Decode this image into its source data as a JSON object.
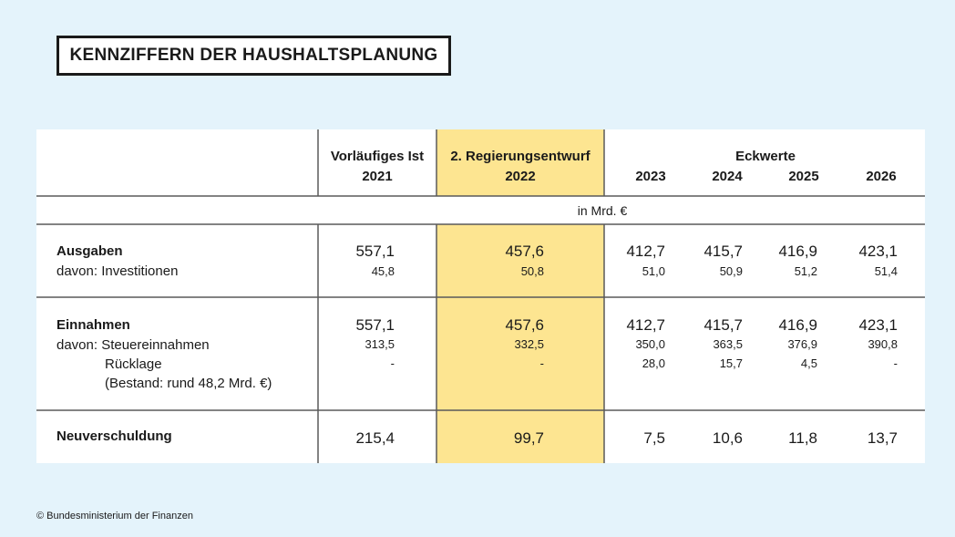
{
  "title": "KENNZIFFERN DER HAUSHALTSPLANUNG",
  "footer": "© Bundesministerium der Finanzen",
  "colors": {
    "background": "#e4f3fb",
    "highlight": "#fde591",
    "table": "#ffffff",
    "rule": "#5a5a5a"
  },
  "chart_data": {
    "type": "table",
    "title": "KENNZIFFERN DER HAUSHALTSPLANUNG",
    "unit": "in Mrd. €",
    "group_header": "Eckwerte",
    "columns": [
      {
        "line1": "Vorläufiges Ist",
        "line2": "2021",
        "highlight": false
      },
      {
        "line1": "2. Regierungsentwurf",
        "line2": "2022",
        "highlight": true
      },
      {
        "line1": "",
        "line2": "2023",
        "highlight": false
      },
      {
        "line1": "",
        "line2": "2024",
        "highlight": false
      },
      {
        "line1": "",
        "line2": "2025",
        "highlight": false
      },
      {
        "line1": "",
        "line2": "2026",
        "highlight": false
      }
    ],
    "rows": [
      {
        "label": "Ausgaben",
        "bold": true,
        "values": [
          "557,1",
          "457,6",
          "412,7",
          "415,7",
          "416,9",
          "423,1"
        ]
      },
      {
        "label": "davon: Investitionen",
        "bold": false,
        "values": [
          "45,8",
          "50,8",
          "51,0",
          "50,9",
          "51,2",
          "51,4"
        ]
      },
      {
        "label": "Einnahmen",
        "bold": true,
        "values": [
          "557,1",
          "457,6",
          "412,7",
          "415,7",
          "416,9",
          "423,1"
        ]
      },
      {
        "label": "davon: Steuereinnahmen",
        "bold": false,
        "values": [
          "313,5",
          "332,5",
          "350,0",
          "363,5",
          "376,9",
          "390,8"
        ]
      },
      {
        "label": "Rücklage",
        "bold": false,
        "values": [
          "-",
          "-",
          "28,0",
          "15,7",
          "4,5",
          "-"
        ]
      },
      {
        "label": "(Bestand: rund 48,2 Mrd. €)",
        "bold": false,
        "values": [
          "",
          "",
          "",
          "",
          "",
          ""
        ]
      },
      {
        "label": "Neuverschuldung",
        "bold": true,
        "values": [
          "215,4",
          "99,7",
          "7,5",
          "10,6",
          "11,8",
          "13,7"
        ]
      }
    ]
  }
}
